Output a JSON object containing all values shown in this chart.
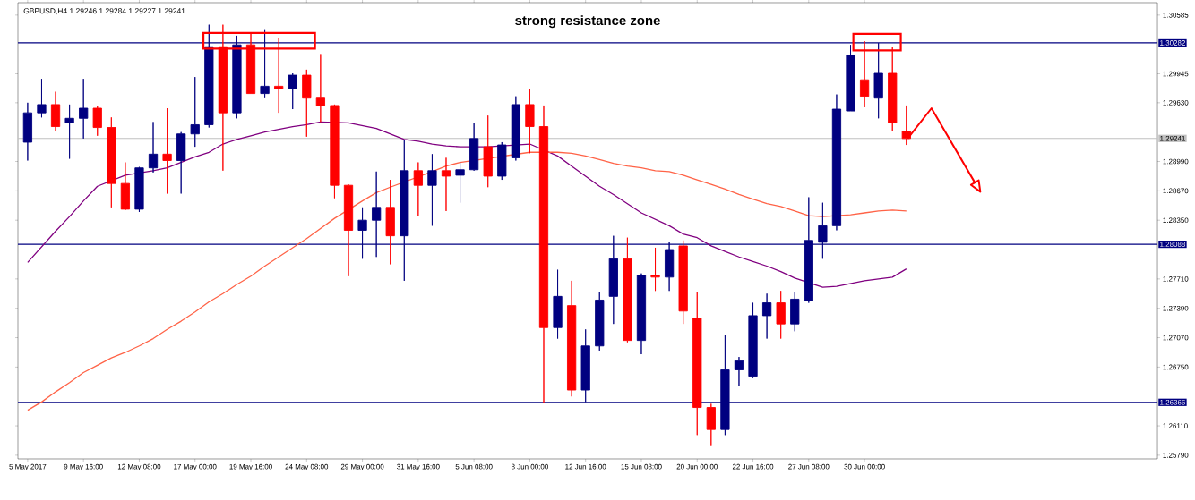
{
  "chart_data": {
    "type": "candlestick",
    "title": "GBPUSD,H4 1.29246 1.29284 1.29227 1.29241",
    "annotations": [
      "strong resistance zone"
    ],
    "categories": [
      "5 May 2017",
      null,
      null,
      null,
      "9 May 16:00",
      null,
      null,
      null,
      "12 May 08:00",
      null,
      null,
      null,
      "17 May 00:00",
      null,
      null,
      null,
      "19 May 16:00",
      null,
      null,
      null,
      "24 May 08:00",
      null,
      null,
      null,
      "29 May 00:00",
      null,
      null,
      null,
      "31 May 16:00",
      null,
      null,
      null,
      "5 Jun 08:00",
      null,
      null,
      null,
      "8 Jun 00:00",
      null,
      null,
      null,
      "12 Jun 16:00",
      null,
      null,
      null,
      "15 Jun 08:00",
      null,
      null,
      null,
      "20 Jun 00:00",
      null,
      null,
      null,
      "22 Jun 16:00",
      null,
      null,
      null,
      "27 Jun 08:00",
      null,
      null,
      null,
      "30 Jun 00:00",
      null,
      null,
      null
    ],
    "ohlc": [
      [
        1.292,
        1.2963,
        1.29,
        1.2952
      ],
      [
        1.2952,
        1.2989,
        1.2947,
        1.2961
      ],
      [
        1.2961,
        1.2975,
        1.2932,
        1.2937
      ],
      [
        1.2941,
        1.2961,
        1.2902,
        1.2946
      ],
      [
        1.2946,
        1.2989,
        1.2924,
        1.2957
      ],
      [
        1.2957,
        1.2959,
        1.2927,
        1.2936
      ],
      [
        1.2936,
        1.2947,
        1.2849,
        1.2875
      ],
      [
        1.2875,
        1.2898,
        1.2846,
        1.2847
      ],
      [
        1.2847,
        1.2893,
        1.2844,
        1.2892
      ],
      [
        1.2892,
        1.2942,
        1.2887,
        1.2907
      ],
      [
        1.2907,
        1.2957,
        1.2864,
        1.29
      ],
      [
        1.29,
        1.2931,
        1.2864,
        1.2929
      ],
      [
        1.2929,
        1.2991,
        1.2915,
        1.2939
      ],
      [
        1.2939,
        1.3048,
        1.2936,
        1.3024
      ],
      [
        1.3024,
        1.3048,
        1.2889,
        1.2952
      ],
      [
        1.2952,
        1.3036,
        1.2946,
        1.3026
      ],
      [
        1.3026,
        1.3038,
        1.2973,
        1.2973
      ],
      [
        1.2973,
        1.3043,
        1.2968,
        1.2981
      ],
      [
        1.2981,
        1.3034,
        1.2952,
        1.2978
      ],
      [
        1.2978,
        1.2995,
        1.2956,
        1.2993
      ],
      [
        1.2993,
        1.2999,
        1.2926,
        1.2968
      ],
      [
        1.2968,
        1.3016,
        1.2942,
        1.296
      ],
      [
        1.296,
        1.2961,
        1.2859,
        1.2873
      ],
      [
        1.2873,
        1.2874,
        1.2774,
        1.2824
      ],
      [
        1.2824,
        1.2849,
        1.2793,
        1.2835
      ],
      [
        1.2835,
        1.2888,
        1.2795,
        1.2849
      ],
      [
        1.2849,
        1.2879,
        1.2787,
        1.2818
      ],
      [
        1.2818,
        1.2922,
        1.2769,
        1.2889
      ],
      [
        1.2889,
        1.2898,
        1.284,
        1.2873
      ],
      [
        1.2873,
        1.2907,
        1.2829,
        1.2889
      ],
      [
        1.2889,
        1.2903,
        1.2845,
        1.2883
      ],
      [
        1.2884,
        1.2898,
        1.2854,
        1.289
      ],
      [
        1.289,
        1.2941,
        1.2889,
        1.2924
      ],
      [
        1.2915,
        1.2949,
        1.2871,
        1.2883
      ],
      [
        1.2883,
        1.292,
        1.2879,
        1.2917
      ],
      [
        1.2903,
        1.297,
        1.29,
        1.2961
      ],
      [
        1.2961,
        1.2978,
        1.2908,
        1.2937
      ],
      [
        1.2937,
        1.296,
        1.2636,
        1.2718
      ],
      [
        1.2718,
        1.2781,
        1.2706,
        1.2752
      ],
      [
        1.2742,
        1.2769,
        1.2643,
        1.265
      ],
      [
        1.265,
        1.2716,
        1.2637,
        1.2698
      ],
      [
        1.2698,
        1.2757,
        1.2693,
        1.2748
      ],
      [
        1.2752,
        1.2818,
        1.2722,
        1.2793
      ],
      [
        1.2793,
        1.2816,
        1.2702,
        1.2704
      ],
      [
        1.2704,
        1.2777,
        1.2689,
        1.2775
      ],
      [
        1.2775,
        1.2805,
        1.2758,
        1.2773
      ],
      [
        1.2773,
        1.2811,
        1.2758,
        1.2803
      ],
      [
        1.2807,
        1.2813,
        1.2722,
        1.2736
      ],
      [
        1.2728,
        1.2757,
        1.2601,
        1.2631
      ],
      [
        1.2631,
        1.2635,
        1.2589,
        1.2607
      ],
      [
        1.2607,
        1.271,
        1.2601,
        1.2672
      ],
      [
        1.2672,
        1.2686,
        1.2654,
        1.2682
      ],
      [
        1.2665,
        1.2745,
        1.2663,
        1.2731
      ],
      [
        1.2731,
        1.2755,
        1.2706,
        1.2745
      ],
      [
        1.2745,
        1.2758,
        1.2706,
        1.2722
      ],
      [
        1.2722,
        1.2757,
        1.2714,
        1.2749
      ],
      [
        1.2747,
        1.286,
        1.2745,
        1.2813
      ],
      [
        1.2811,
        1.2854,
        1.2793,
        1.2829
      ],
      [
        1.2829,
        1.2972,
        1.2824,
        1.2956
      ],
      [
        1.2954,
        1.3026,
        1.2954,
        1.3015
      ],
      [
        1.2988,
        1.303,
        1.2958,
        1.297
      ],
      [
        1.2968,
        1.3028,
        1.2946,
        1.2995
      ],
      [
        1.2995,
        1.3024,
        1.2932,
        1.2941
      ],
      [
        1.2932,
        1.296,
        1.2917,
        1.2924
      ]
    ],
    "colors": [
      "#000080",
      "#000080",
      "#ff0000",
      "#000080",
      "#000080",
      "#ff0000",
      "#ff0000",
      "#ff0000",
      "#000080",
      "#000080",
      "#ff0000",
      "#000080",
      "#000080",
      "#000080",
      "#ff0000",
      "#000080",
      "#ff0000",
      "#000080",
      "#ff0000",
      "#000080",
      "#ff0000",
      "#ff0000",
      "#ff0000",
      "#ff0000",
      "#000080",
      "#000080",
      "#ff0000",
      "#000080",
      "#ff0000",
      "#000080",
      "#ff0000",
      "#000080",
      "#000080",
      "#ff0000",
      "#000080",
      "#000080",
      "#ff0000",
      "#ff0000",
      "#000080",
      "#ff0000",
      "#000080",
      "#000080",
      "#000080",
      "#ff0000",
      "#000080",
      "#ff0000",
      "#000080",
      "#ff0000",
      "#ff0000",
      "#ff0000",
      "#000080",
      "#000080",
      "#000080",
      "#000080",
      "#ff0000",
      "#000080",
      "#000080",
      "#000080",
      "#000080",
      "#000080",
      "#ff0000",
      "#000080",
      "#ff0000",
      "#ff0000"
    ],
    "series": [
      {
        "type": "line",
        "color": "#800080",
        "values": [
          1.2789,
          1.2806,
          1.2823,
          1.2839,
          1.2856,
          1.2872,
          null,
          1.2884,
          null,
          1.2889,
          1.2892,
          1.2898,
          1.2904,
          1.2909,
          1.2918,
          1.2923,
          1.2927,
          1.2931,
          1.2934,
          1.2937,
          1.2939,
          1.2942,
          null,
          1.2941,
          1.2938,
          1.2935,
          1.2929,
          1.2923,
          1.2921,
          1.2918,
          1.2916,
          1.2915,
          null,
          1.2915,
          null,
          null,
          1.2918,
          null,
          1.2905,
          1.2894,
          1.2883,
          1.2872,
          1.2863,
          1.2853,
          1.2843,
          1.2836,
          1.2829,
          1.282,
          1.2816,
          1.2807,
          1.2801,
          1.2795,
          1.279,
          1.2785,
          1.2779,
          1.2772,
          null,
          1.2762,
          1.2763,
          1.2766,
          1.2769,
          1.2771,
          1.2773,
          1.2782
        ]
      },
      {
        "type": "line",
        "color": "#ff6347",
        "values": [
          1.2628,
          1.2637,
          1.2648,
          1.2658,
          1.2669,
          1.2677,
          1.2685,
          1.2691,
          1.2698,
          1.2706,
          1.2716,
          1.2725,
          1.2735,
          1.2746,
          1.2755,
          1.2765,
          1.2774,
          1.2785,
          1.2795,
          1.2805,
          1.2815,
          1.2826,
          1.2837,
          null,
          1.2856,
          1.2865,
          1.2871,
          null,
          null,
          1.2888,
          1.2894,
          1.2898,
          null,
          null,
          null,
          null,
          1.2909,
          null,
          1.2909,
          1.2908,
          1.2905,
          1.2901,
          1.2897,
          1.2894,
          1.2892,
          1.2889,
          1.2888,
          1.2884,
          1.2879,
          1.2874,
          1.2869,
          1.2863,
          1.2858,
          1.2853,
          1.285,
          1.2845,
          1.284,
          1.2839,
          null,
          1.2841,
          1.2843,
          1.2845,
          1.2846,
          1.2845
        ]
      }
    ],
    "ylim": [
      1.2575,
      1.3072
    ],
    "yticks": [
      {
        "value": 1.30585,
        "label": "1.30585"
      },
      {
        "value": 1.29945,
        "label": "1.29945"
      },
      {
        "value": 1.2963,
        "label": "1.29630"
      },
      {
        "value": 1.2899,
        "label": "1.28990"
      },
      {
        "value": 1.2867,
        "label": "1.28670"
      },
      {
        "value": 1.2835,
        "label": "1.28350"
      },
      {
        "value": 1.2771,
        "label": "1.27710"
      },
      {
        "value": 1.2739,
        "label": "1.27390"
      },
      {
        "value": 1.2707,
        "label": "1.27070"
      },
      {
        "value": 1.2675,
        "label": "1.26750"
      },
      {
        "value": 1.2611,
        "label": "1.26110"
      },
      {
        "value": 1.2579,
        "label": "1.25790"
      }
    ],
    "ref_lines": [
      {
        "axis": "y",
        "value": 1.30282,
        "label": "1.30282",
        "color": "#000080"
      },
      {
        "axis": "y",
        "value": 1.28088,
        "label": "1.28088",
        "color": "#000080"
      },
      {
        "axis": "y",
        "value": 1.26366,
        "label": "1.26366",
        "color": "#000080"
      },
      {
        "axis": "y",
        "value": 1.29241,
        "label": "1.29241",
        "color": "#c0c0c0"
      }
    ]
  }
}
